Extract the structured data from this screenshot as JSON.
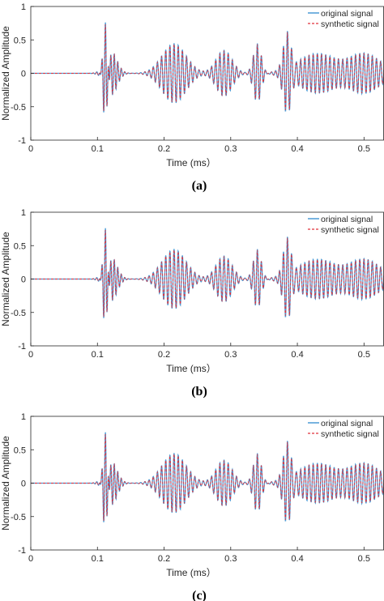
{
  "colors": {
    "original": "#4A9BD6",
    "synthetic": "#E0303A",
    "axis": "#262626"
  },
  "chart_data": [
    {
      "type": "line",
      "caption": "(a)",
      "xlabel": "Time (ms）",
      "ylabel": "Normalized Amplitude",
      "xlim": [
        0,
        0.53
      ],
      "ylim": [
        -1,
        1
      ],
      "xticks": [
        "0",
        "0.1",
        "0.2",
        "0.3",
        "0.4",
        "0.5"
      ],
      "yticks": [
        "1",
        "0.5",
        "0",
        "-0.5",
        "-1"
      ],
      "legend": {
        "position": "top-right",
        "entries": [
          "original signal",
          "synthetic signal"
        ]
      },
      "grid": false,
      "series": [
        {
          "name": "original signal",
          "style": "solid"
        },
        {
          "name": "synthetic signal",
          "style": "dashed"
        }
      ],
      "wave_packets": [
        {
          "t": 0.112,
          "amp": [
            1.0,
            -0.88
          ],
          "f": 190,
          "sigma": 0.0035
        },
        {
          "t": 0.12,
          "amp": [
            0.35,
            -0.3
          ],
          "f": 190,
          "sigma": 0.009
        },
        {
          "t": 0.215,
          "amp": [
            0.45,
            -0.45
          ],
          "f": 160,
          "sigma": 0.018
        },
        {
          "t": 0.29,
          "amp": [
            0.35,
            -0.35
          ],
          "f": 160,
          "sigma": 0.012
        },
        {
          "t": 0.34,
          "amp": [
            0.42,
            -0.45
          ],
          "f": 165,
          "sigma": 0.006
        },
        {
          "t": 0.385,
          "amp": [
            0.6,
            -0.55
          ],
          "f": 165,
          "sigma": 0.006
        },
        {
          "t": 0.43,
          "amp": [
            0.3,
            -0.3
          ],
          "f": 160,
          "sigma": 0.03
        },
        {
          "t": 0.5,
          "amp": [
            0.3,
            -0.25
          ],
          "f": 160,
          "sigma": 0.025
        }
      ]
    },
    {
      "type": "line",
      "caption": "(b)",
      "xlabel": "Time (ms）",
      "ylabel": "Normalized Amplitude",
      "xlim": [
        0,
        0.53
      ],
      "ylim": [
        -1,
        1
      ],
      "xticks": [
        "0",
        "0.1",
        "0.2",
        "0.3",
        "0.4",
        "0.5"
      ],
      "yticks": [
        "1",
        "0.5",
        "0",
        "-0.5",
        "-1"
      ],
      "legend": {
        "position": "top-right",
        "entries": [
          "original signal",
          "synthetic signal"
        ]
      },
      "grid": false,
      "series": [
        {
          "name": "original signal",
          "style": "solid"
        },
        {
          "name": "synthetic signal",
          "style": "dashed"
        }
      ],
      "wave_packets": [
        {
          "t": 0.112,
          "amp": [
            1.0,
            -0.88
          ],
          "f": 190,
          "sigma": 0.0035
        },
        {
          "t": 0.12,
          "amp": [
            0.35,
            -0.3
          ],
          "f": 190,
          "sigma": 0.009
        },
        {
          "t": 0.215,
          "amp": [
            0.45,
            -0.45
          ],
          "f": 160,
          "sigma": 0.018
        },
        {
          "t": 0.29,
          "amp": [
            0.35,
            -0.35
          ],
          "f": 160,
          "sigma": 0.012
        },
        {
          "t": 0.34,
          "amp": [
            0.42,
            -0.45
          ],
          "f": 165,
          "sigma": 0.006
        },
        {
          "t": 0.385,
          "amp": [
            0.6,
            -0.55
          ],
          "f": 165,
          "sigma": 0.006
        },
        {
          "t": 0.43,
          "amp": [
            0.3,
            -0.3
          ],
          "f": 160,
          "sigma": 0.03
        },
        {
          "t": 0.5,
          "amp": [
            0.3,
            -0.25
          ],
          "f": 160,
          "sigma": 0.025
        }
      ]
    },
    {
      "type": "line",
      "caption": "(c)",
      "xlabel": "Time (ms）",
      "ylabel": "Normalized Amplitude",
      "xlim": [
        0,
        0.53
      ],
      "ylim": [
        -1,
        1
      ],
      "xticks": [
        "0",
        "0.1",
        "0.2",
        "0.3",
        "0.4",
        "0.5"
      ],
      "yticks": [
        "1",
        "0.5",
        "0",
        "-0.5",
        "-1"
      ],
      "legend": {
        "position": "top-right",
        "entries": [
          "original signal",
          "synthetic signal"
        ]
      },
      "grid": false,
      "series": [
        {
          "name": "original signal",
          "style": "solid"
        },
        {
          "name": "synthetic signal",
          "style": "dashed"
        }
      ],
      "wave_packets": [
        {
          "t": 0.112,
          "amp": [
            1.0,
            -0.88
          ],
          "f": 190,
          "sigma": 0.0035
        },
        {
          "t": 0.12,
          "amp": [
            0.35,
            -0.3
          ],
          "f": 190,
          "sigma": 0.009
        },
        {
          "t": 0.215,
          "amp": [
            0.45,
            -0.45
          ],
          "f": 160,
          "sigma": 0.018
        },
        {
          "t": 0.29,
          "amp": [
            0.35,
            -0.35
          ],
          "f": 160,
          "sigma": 0.012
        },
        {
          "t": 0.34,
          "amp": [
            0.42,
            -0.45
          ],
          "f": 165,
          "sigma": 0.006
        },
        {
          "t": 0.385,
          "amp": [
            0.6,
            -0.55
          ],
          "f": 165,
          "sigma": 0.006
        },
        {
          "t": 0.43,
          "amp": [
            0.3,
            -0.3
          ],
          "f": 160,
          "sigma": 0.03
        },
        {
          "t": 0.5,
          "amp": [
            0.3,
            -0.25
          ],
          "f": 160,
          "sigma": 0.025
        }
      ]
    }
  ]
}
